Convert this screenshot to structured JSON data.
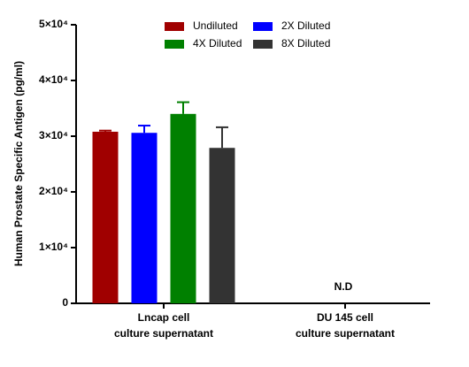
{
  "chart_data": {
    "type": "bar",
    "y_label": "Human Prostate Specific Antigen (pg/ml)",
    "categories": [
      [
        "Lncap cell",
        "culture supernatant"
      ],
      [
        "DU 145 cell",
        "culture supernatant"
      ]
    ],
    "series": [
      {
        "name": "Undiluted",
        "color": "#a00000",
        "values": [
          30800,
          null
        ],
        "errors": [
          200,
          null
        ]
      },
      {
        "name": "2X Diluted",
        "color": "#0000ff",
        "values": [
          30600,
          null
        ],
        "errors": [
          1300,
          null
        ]
      },
      {
        "name": "4X Diluted",
        "color": "#008000",
        "values": [
          34000,
          null
        ],
        "errors": [
          2100,
          null
        ]
      },
      {
        "name": "8X Diluted",
        "color": "#333333",
        "values": [
          27900,
          null
        ],
        "errors": [
          3700,
          null
        ]
      }
    ],
    "annotations": [
      {
        "text": "N.D",
        "category": 1
      }
    ],
    "ylim": [
      0,
      50000
    ],
    "yticks": [
      {
        "value": 0,
        "label": "0"
      },
      {
        "value": 10000,
        "label": "1×10⁴"
      },
      {
        "value": 20000,
        "label": "2×10⁴"
      },
      {
        "value": 30000,
        "label": "3×10⁴"
      },
      {
        "value": 40000,
        "label": "4×10⁴"
      },
      {
        "value": 50000,
        "label": "5×10⁴"
      }
    ]
  }
}
